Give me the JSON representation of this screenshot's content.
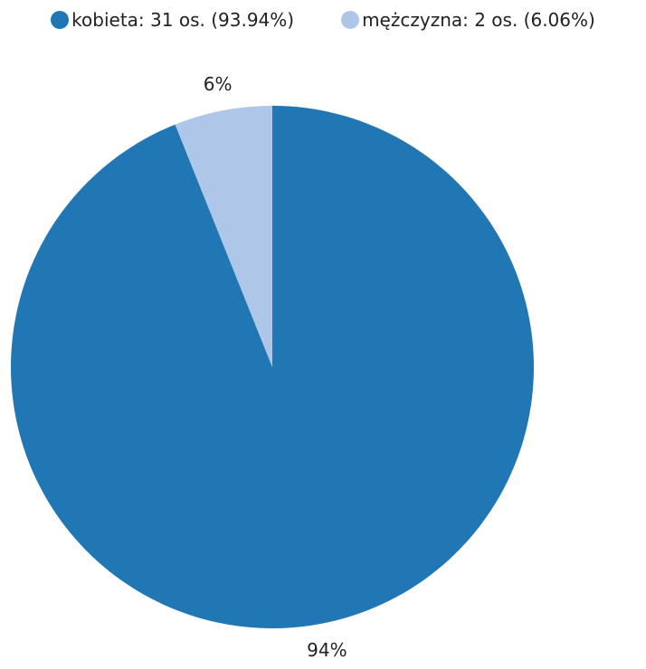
{
  "chart_data": {
    "type": "pie",
    "series": [
      {
        "name": "kobieta",
        "legend_label": "kobieta: 31 os. (93.94%)",
        "count": 31,
        "percent": 93.94,
        "slice_label": "94%",
        "color": "#2077b4"
      },
      {
        "name": "mężczyzna",
        "legend_label": "mężczyzna: 2 os. (6.06%)",
        "count": 2,
        "percent": 6.06,
        "slice_label": "6%",
        "color": "#aec7e8"
      }
    ],
    "legend_position": "top"
  }
}
